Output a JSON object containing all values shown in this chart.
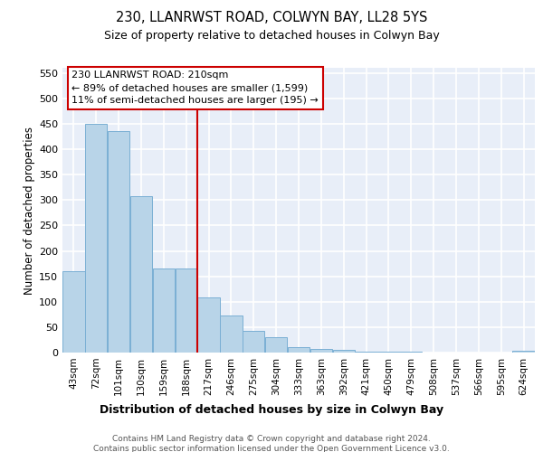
{
  "title1": "230, LLANRWST ROAD, COLWYN BAY, LL28 5YS",
  "title2": "Size of property relative to detached houses in Colwyn Bay",
  "xlabel": "Distribution of detached houses by size in Colwyn Bay",
  "ylabel": "Number of detached properties",
  "categories": [
    "43sqm",
    "72sqm",
    "101sqm",
    "130sqm",
    "159sqm",
    "188sqm",
    "217sqm",
    "246sqm",
    "275sqm",
    "304sqm",
    "333sqm",
    "363sqm",
    "392sqm",
    "421sqm",
    "450sqm",
    "479sqm",
    "508sqm",
    "537sqm",
    "566sqm",
    "595sqm",
    "624sqm"
  ],
  "values": [
    160,
    450,
    435,
    308,
    165,
    165,
    108,
    73,
    43,
    31,
    10,
    8,
    5,
    2,
    1,
    1,
    0,
    0,
    0,
    0,
    4
  ],
  "bar_color": "#b8d4e8",
  "bar_edge_color": "#7aafd4",
  "vline_x": 6.0,
  "vline_color": "#cc0000",
  "annotation_title": "230 LLANRWST ROAD: 210sqm",
  "annotation_line1": "← 89% of detached houses are smaller (1,599)",
  "annotation_line2": "11% of semi-detached houses are larger (195) →",
  "annotation_border_color": "#cc0000",
  "ylim": [
    0,
    560
  ],
  "yticks": [
    0,
    50,
    100,
    150,
    200,
    250,
    300,
    350,
    400,
    450,
    500,
    550
  ],
  "footer1": "Contains HM Land Registry data © Crown copyright and database right 2024.",
  "footer2": "Contains public sector information licensed under the Open Government Licence v3.0.",
  "bg_color": "#ffffff",
  "plot_bg_color": "#e8eef8"
}
